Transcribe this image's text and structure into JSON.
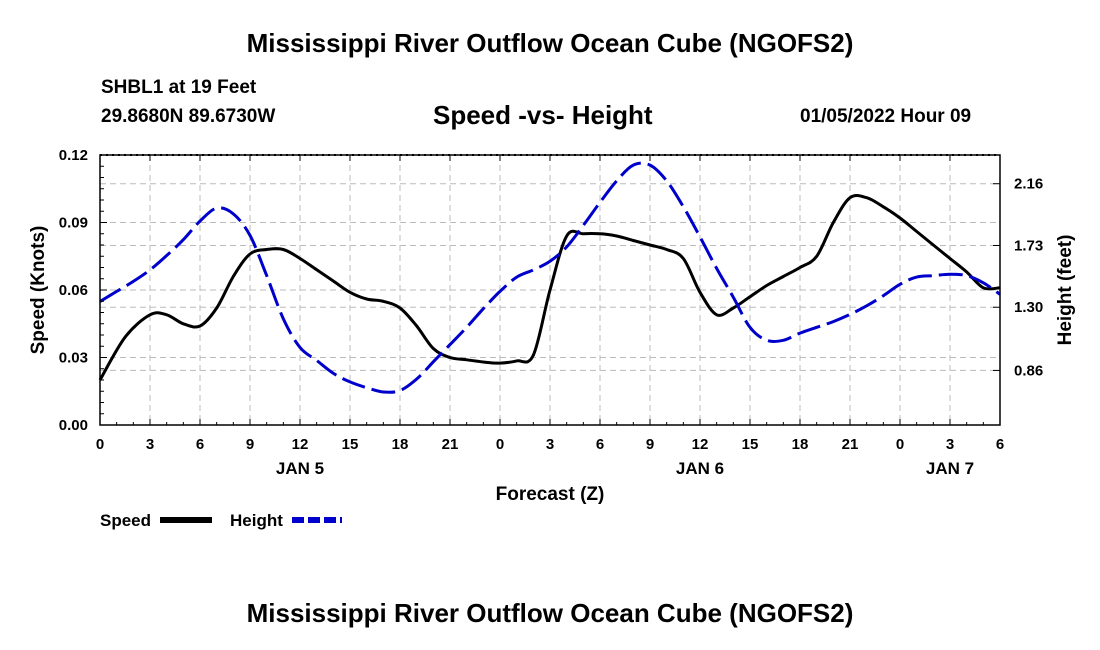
{
  "header": {
    "title": "Mississippi River Outflow Ocean Cube (NGOFS2)",
    "station": "SHBL1 at 19 Feet",
    "location": "29.8680N  89.6730W",
    "subtitle": "Speed -vs- Height",
    "datetime": "01/05/2022 Hour 09"
  },
  "footer": {
    "title": "Mississippi River Outflow Ocean Cube (NGOFS2)"
  },
  "chart_data": {
    "type": "line",
    "xlabel": "Forecast (Z)",
    "ylabel": "Speed (Knots)",
    "y2label": "Height (feet)",
    "xlim": [
      0,
      54
    ],
    "ylim": [
      0,
      0.12
    ],
    "y2lim": [
      0.48,
      2.36
    ],
    "grid": true,
    "x_ticks": [
      0,
      3,
      6,
      9,
      12,
      15,
      18,
      21,
      24,
      27,
      30,
      33,
      36,
      39,
      42,
      45,
      48,
      51,
      54
    ],
    "x_tick_labels": [
      "0",
      "3",
      "6",
      "9",
      "12",
      "15",
      "18",
      "21",
      "0",
      "3",
      "6",
      "9",
      "12",
      "15",
      "18",
      "21",
      "0",
      "3",
      "6"
    ],
    "y_ticks": [
      0,
      0.03,
      0.06,
      0.09,
      0.12
    ],
    "y_tick_labels": [
      "0.00",
      "0.03",
      "0.06",
      "0.09",
      "0.12"
    ],
    "y2_ticks": [
      0.86,
      1.3,
      1.73,
      2.16
    ],
    "y2_tick_labels": [
      "0.86",
      "1.30",
      "1.73",
      "2.16"
    ],
    "date_labels": [
      {
        "x": 12,
        "label": "JAN 5"
      },
      {
        "x": 36,
        "label": "JAN 6"
      },
      {
        "x": 51,
        "label": "JAN 7"
      }
    ],
    "legend_position": "bottom-left",
    "series": [
      {
        "name": "Speed",
        "axis": "left",
        "color": "#000000",
        "style": "solid",
        "x": [
          0,
          1.5,
          3,
          4,
          5,
          6,
          7,
          8,
          9,
          10,
          11,
          12,
          13,
          14,
          15,
          16,
          17,
          18,
          19,
          20,
          21,
          22,
          23,
          24,
          25,
          26,
          27,
          28,
          29,
          30,
          31,
          32,
          33,
          34,
          35,
          36,
          37,
          38,
          39,
          40,
          41,
          42,
          43,
          44,
          45,
          46,
          47,
          48,
          49,
          50,
          51,
          52,
          53,
          54
        ],
        "values": [
          0.02,
          0.039,
          0.049,
          0.049,
          0.045,
          0.044,
          0.052,
          0.066,
          0.076,
          0.078,
          0.078,
          0.074,
          0.069,
          0.064,
          0.059,
          0.056,
          0.055,
          0.052,
          0.044,
          0.034,
          0.03,
          0.029,
          0.028,
          0.0275,
          0.0285,
          0.031,
          0.06,
          0.084,
          0.085,
          0.085,
          0.084,
          0.082,
          0.08,
          0.078,
          0.074,
          0.059,
          0.049,
          0.052,
          0.057,
          0.062,
          0.066,
          0.07,
          0.075,
          0.09,
          0.101,
          0.101,
          0.097,
          0.092,
          0.086,
          0.08,
          0.074,
          0.068,
          0.061,
          0.061
        ]
      },
      {
        "name": "Height",
        "axis": "right",
        "color": "#0000cc",
        "style": "dashed",
        "x": [
          0,
          1,
          2,
          3,
          4,
          5,
          6,
          7,
          8,
          9,
          10,
          11,
          12,
          13,
          14,
          15,
          16,
          17,
          18,
          19,
          20,
          21,
          22,
          23,
          24,
          25,
          26,
          27,
          28,
          29,
          30,
          31,
          32,
          33,
          34,
          35,
          36,
          37,
          38,
          39,
          40,
          41,
          42,
          43,
          44,
          45,
          46,
          47,
          48,
          49,
          50,
          51,
          52,
          53,
          54
        ],
        "values": [
          1.34,
          1.41,
          1.48,
          1.56,
          1.66,
          1.77,
          1.9,
          1.99,
          1.95,
          1.8,
          1.52,
          1.22,
          1.02,
          0.93,
          0.84,
          0.78,
          0.74,
          0.71,
          0.72,
          0.8,
          0.92,
          1.04,
          1.16,
          1.29,
          1.41,
          1.51,
          1.56,
          1.62,
          1.72,
          1.87,
          2.03,
          2.18,
          2.29,
          2.29,
          2.18,
          2.0,
          1.79,
          1.57,
          1.37,
          1.16,
          1.07,
          1.07,
          1.12,
          1.16,
          1.2,
          1.25,
          1.31,
          1.38,
          1.46,
          1.51,
          1.52,
          1.53,
          1.52,
          1.47,
          1.39
        ]
      }
    ]
  }
}
